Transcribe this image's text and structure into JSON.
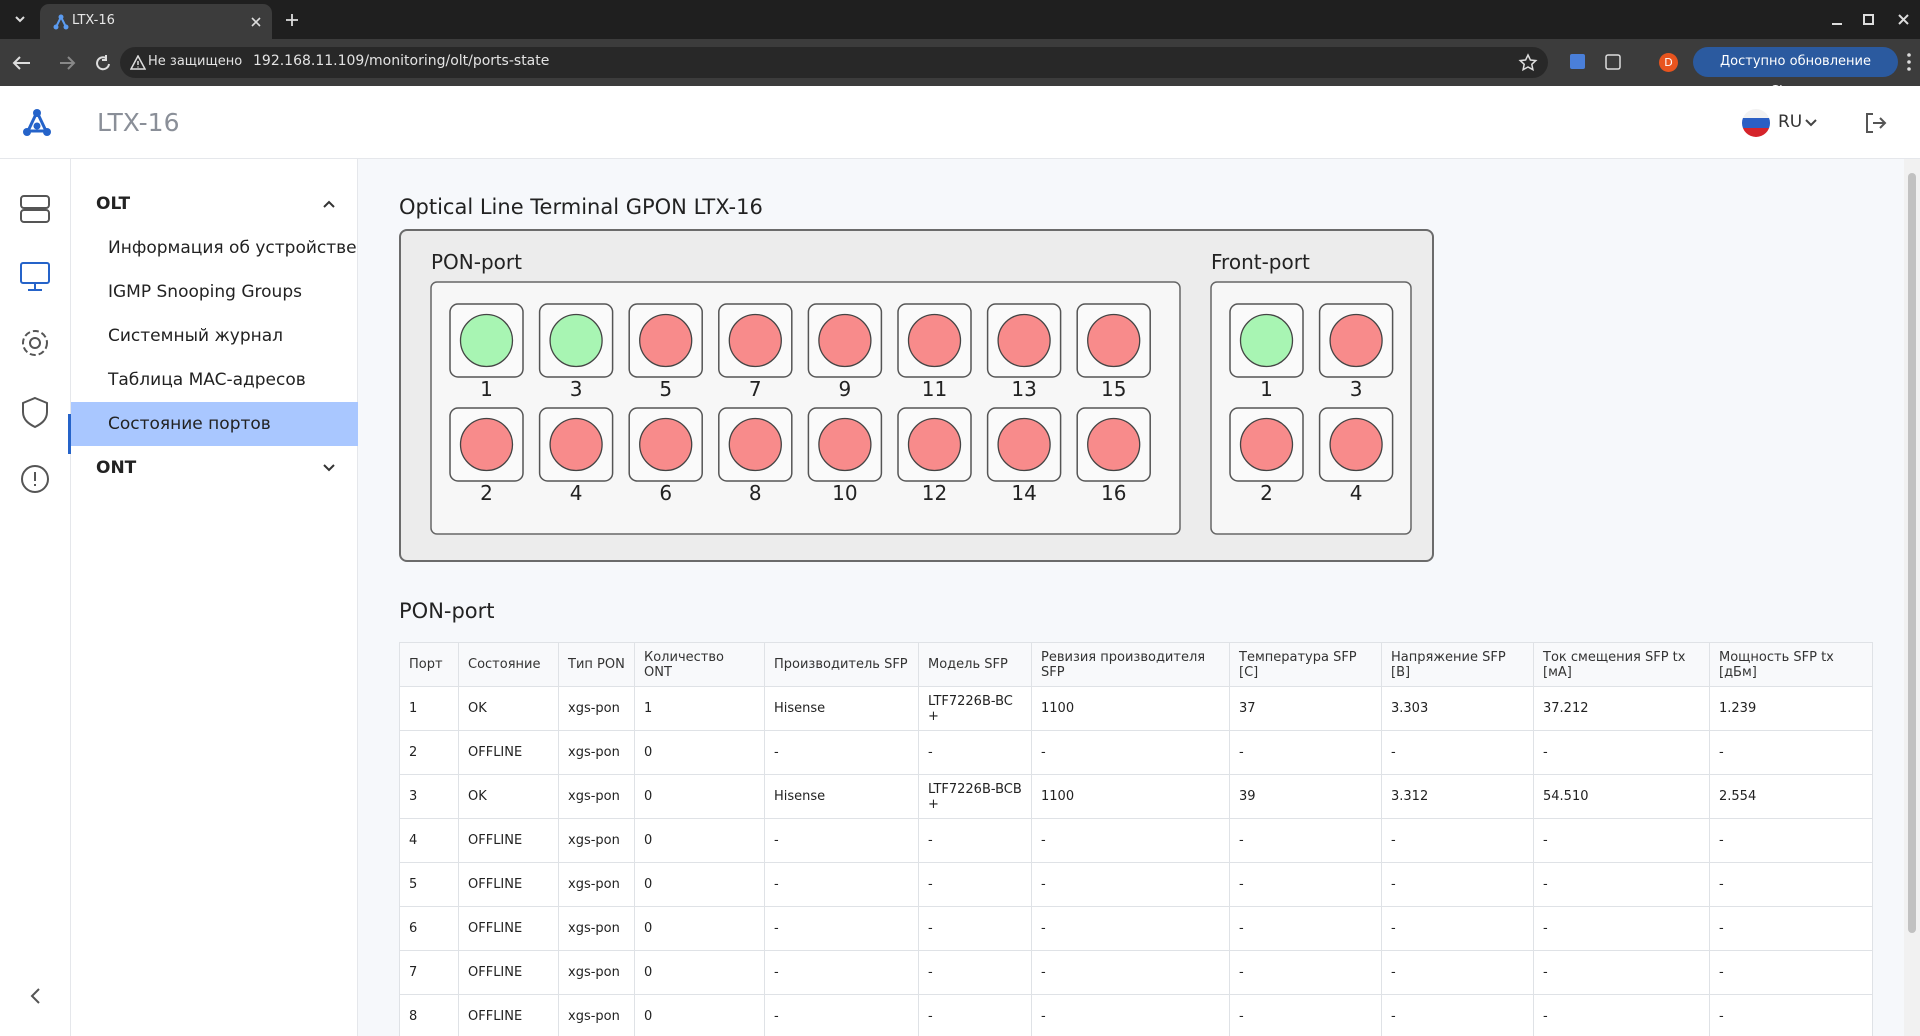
{
  "browser": {
    "tab_title": "LTX-16",
    "security": "Не защищено",
    "url": "192.168.11.109/monitoring/olt/ports-state",
    "profile": "D",
    "update_button": "Доступно обновление Chrome"
  },
  "header": {
    "title": "LTX-16",
    "language": "RU"
  },
  "sidebar": {
    "groups": [
      {
        "label": "OLT",
        "items": [
          {
            "label": "Информация об устройстве",
            "selected": false
          },
          {
            "label": "IGMP Snooping Groups",
            "selected": false
          },
          {
            "label": "Системный журнал",
            "selected": false
          },
          {
            "label": "Таблица MAC-адресов",
            "selected": false
          },
          {
            "label": "Состояние портов",
            "selected": true
          }
        ]
      },
      {
        "label": "ONT",
        "items": []
      }
    ]
  },
  "panel": {
    "title": "Optical Line Terminal GPON LTX-16",
    "pon": {
      "label": "PON-port",
      "ports": [
        {
          "label": "1",
          "color": "#a8f5b3"
        },
        {
          "label": "2",
          "color": "#f88b8b"
        },
        {
          "label": "3",
          "color": "#a8f5b3"
        },
        {
          "label": "4",
          "color": "#f88b8b"
        },
        {
          "label": "5",
          "color": "#f88b8b"
        },
        {
          "label": "6",
          "color": "#f88b8b"
        },
        {
          "label": "7",
          "color": "#f88b8b"
        },
        {
          "label": "8",
          "color": "#f88b8b"
        },
        {
          "label": "9",
          "color": "#f88b8b"
        },
        {
          "label": "10",
          "color": "#f88b8b"
        },
        {
          "label": "11",
          "color": "#f88b8b"
        },
        {
          "label": "12",
          "color": "#f88b8b"
        },
        {
          "label": "13",
          "color": "#f88b8b"
        },
        {
          "label": "14",
          "color": "#f88b8b"
        },
        {
          "label": "15",
          "color": "#f88b8b"
        },
        {
          "label": "16",
          "color": "#f88b8b"
        }
      ]
    },
    "front": {
      "label": "Front-port",
      "ports": [
        {
          "label": "1",
          "color": "#a8f5b3"
        },
        {
          "label": "2",
          "color": "#f88b8b"
        },
        {
          "label": "3",
          "color": "#f88b8b"
        },
        {
          "label": "4",
          "color": "#f88b8b"
        }
      ]
    }
  },
  "table": {
    "title": "PON-port",
    "headers": [
      "Порт",
      "Состояние",
      "Тип PON",
      "Количество ONT",
      "Производитель SFP",
      "Модель SFP",
      "Ревизия производителя SFP",
      "Температура SFP [C]",
      "Напряжение SFP [B]",
      "Ток смещения SFP tx [мА]",
      "Мощность SFP tx [дБм]"
    ],
    "rows": [
      [
        "1",
        "OK",
        "xgs-pon",
        "1",
        "Hisense",
        "LTF7226B-BC+",
        "1100",
        "37",
        "3.303",
        "37.212",
        "1.239"
      ],
      [
        "2",
        "OFFLINE",
        "xgs-pon",
        "0",
        "-",
        "-",
        "-",
        "-",
        "-",
        "-",
        "-"
      ],
      [
        "3",
        "OK",
        "xgs-pon",
        "0",
        "Hisense",
        "LTF7226B-BCB+",
        "1100",
        "39",
        "3.312",
        "54.510",
        "2.554"
      ],
      [
        "4",
        "OFFLINE",
        "xgs-pon",
        "0",
        "-",
        "-",
        "-",
        "-",
        "-",
        "-",
        "-"
      ],
      [
        "5",
        "OFFLINE",
        "xgs-pon",
        "0",
        "-",
        "-",
        "-",
        "-",
        "-",
        "-",
        "-"
      ],
      [
        "6",
        "OFFLINE",
        "xgs-pon",
        "0",
        "-",
        "-",
        "-",
        "-",
        "-",
        "-",
        "-"
      ],
      [
        "7",
        "OFFLINE",
        "xgs-pon",
        "0",
        "-",
        "-",
        "-",
        "-",
        "-",
        "-",
        "-"
      ],
      [
        "8",
        "OFFLINE",
        "xgs-pon",
        "0",
        "-",
        "-",
        "-",
        "-",
        "-",
        "-",
        "-"
      ]
    ]
  }
}
